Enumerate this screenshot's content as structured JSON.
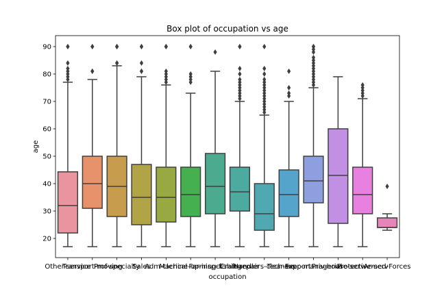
{
  "chart_data": {
    "type": "box",
    "title": "Box plot of occupation vs age",
    "xlabel": "occupation",
    "ylabel": "age",
    "ylim": [
      13,
      94
    ],
    "yticks": [
      20,
      30,
      40,
      50,
      60,
      70,
      80,
      90
    ],
    "categories": [
      {
        "name": "Other-service",
        "color": "#e9949e",
        "whislo": 17,
        "q1": 22,
        "median": 32,
        "q3": 44.3,
        "whishi": 77,
        "fliers": [
          78,
          79,
          80,
          81,
          82,
          84,
          90,
          90
        ]
      },
      {
        "name": "Transport-moving",
        "color": "#e8926c",
        "whislo": 17,
        "q1": 31,
        "median": 40,
        "q3": 50,
        "whishi": 78,
        "fliers": [
          81,
          81,
          90,
          90
        ]
      },
      {
        "name": "Prof-specialty",
        "color": "#c89c4d",
        "whislo": 17,
        "q1": 28,
        "median": 39,
        "q3": 50,
        "whishi": 83,
        "fliers": [
          84,
          84,
          90,
          90,
          90
        ]
      },
      {
        "name": "Sales",
        "color": "#b0a447",
        "whislo": 17,
        "q1": 25,
        "median": 35,
        "q3": 47,
        "whishi": 79,
        "fliers": [
          81,
          81,
          84,
          90,
          90
        ]
      },
      {
        "name": "Adm-clerical",
        "color": "#97a940",
        "whislo": 17,
        "q1": 26,
        "median": 35,
        "q3": 46,
        "whishi": 76,
        "fliers": [
          77,
          78,
          79,
          80,
          81,
          90,
          90
        ]
      },
      {
        "name": "Machine-op-inspct",
        "color": "#45b04f",
        "whislo": 17,
        "q1": 28,
        "median": 36,
        "q3": 46,
        "whishi": 73,
        "fliers": [
          77,
          78,
          79,
          80,
          90,
          90
        ]
      },
      {
        "name": "Farming-fishing",
        "color": "#4cab8f",
        "whislo": 17,
        "q1": 29,
        "median": 39,
        "q3": 51,
        "whishi": 81,
        "fliers": [
          88
        ]
      },
      {
        "name": "Craft-repair",
        "color": "#4daa9e",
        "whislo": 17,
        "q1": 30,
        "median": 37,
        "q3": 46,
        "whishi": 70,
        "fliers": [
          71,
          72,
          73,
          74,
          75,
          76,
          77,
          78,
          80,
          82,
          90,
          90
        ]
      },
      {
        "name": "Handlers-cleaners",
        "color": "#50a8b0",
        "whislo": 17,
        "q1": 23,
        "median": 29,
        "q3": 40,
        "whishi": 65,
        "fliers": [
          66,
          67,
          68,
          69,
          70,
          71,
          72,
          73,
          74,
          75,
          76,
          77,
          78,
          80,
          82,
          90
        ]
      },
      {
        "name": "Tech-support",
        "color": "#54a4cb",
        "whislo": 17,
        "q1": 28,
        "median": 36,
        "q3": 45,
        "whishi": 70,
        "fliers": [
          72,
          73,
          75,
          81
        ]
      },
      {
        "name": "Exec-managerial",
        "color": "#8e9fe0",
        "whislo": 17,
        "q1": 33,
        "median": 41,
        "q3": 50,
        "whishi": 75,
        "fliers": [
          76,
          77,
          78,
          79,
          80,
          81,
          82,
          83,
          84,
          85,
          86,
          88,
          89,
          90,
          90
        ]
      },
      {
        "name": "Priv-house-serv",
        "color": "#c18fe4",
        "whislo": 17,
        "q1": 25.5,
        "median": 43,
        "q3": 60,
        "whishi": 79,
        "fliers": []
      },
      {
        "name": "Protective-serv",
        "color": "#e880e0",
        "whislo": 17,
        "q1": 29,
        "median": 36,
        "q3": 46,
        "whishi": 71,
        "fliers": [
          72,
          73,
          74,
          75,
          76
        ]
      },
      {
        "name": "Armed-Forces",
        "color": "#e585b8",
        "whislo": 23,
        "q1": 24,
        "median": 24,
        "q3": 27.5,
        "whishi": 29,
        "fliers": [
          39
        ]
      }
    ]
  }
}
